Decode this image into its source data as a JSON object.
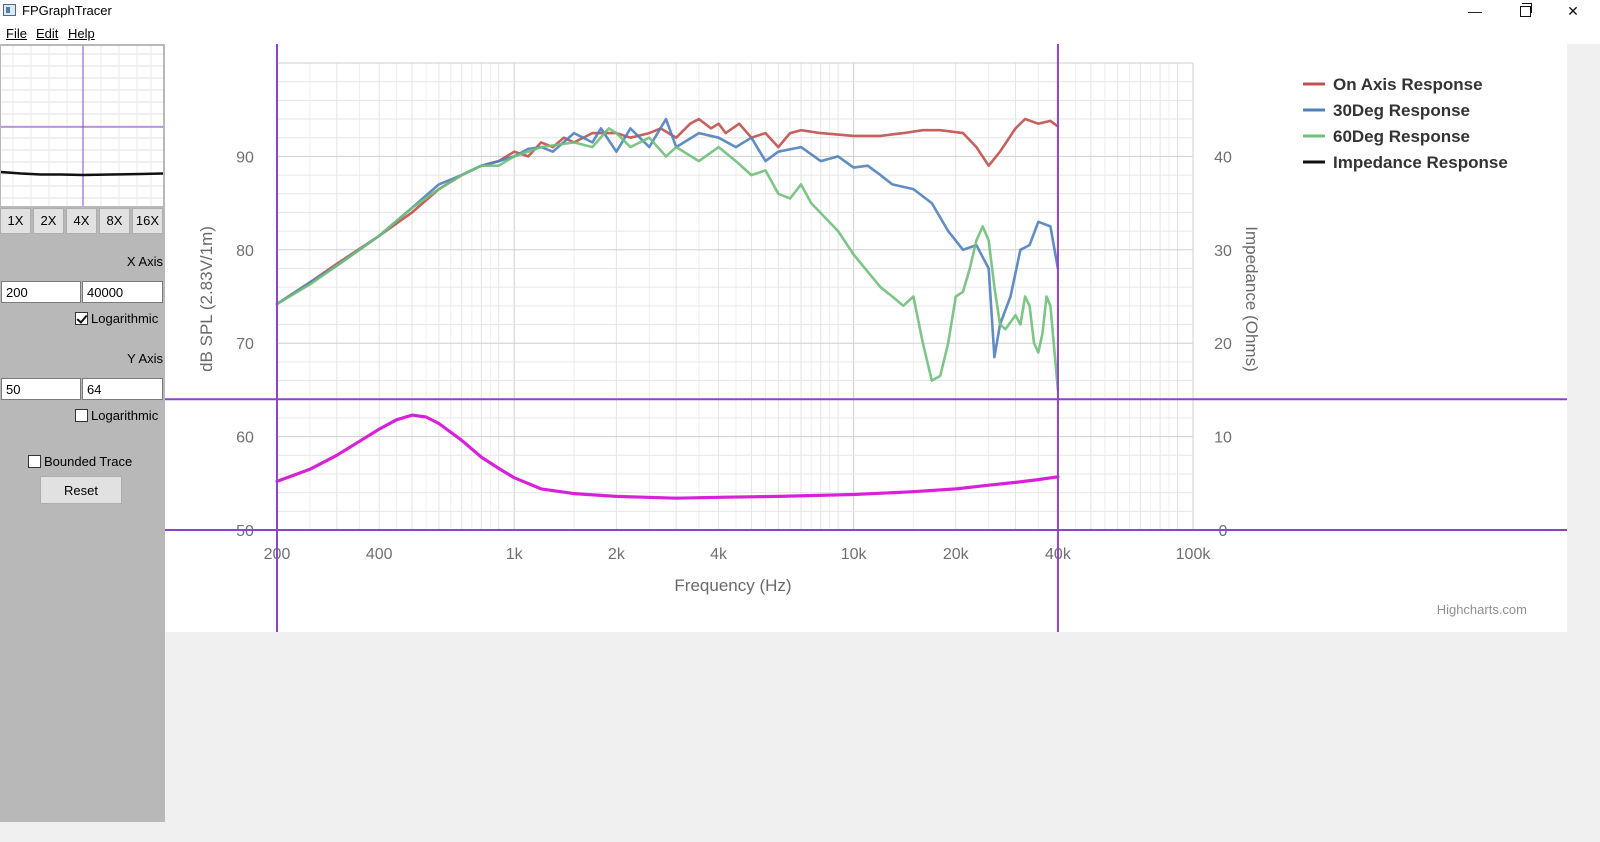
{
  "window": {
    "title": "FPGraphTracer",
    "controls": {
      "minimize": "—",
      "close": "✕"
    }
  },
  "menu": {
    "file": "File",
    "edit": "Edit",
    "help": "Help"
  },
  "sidebar": {
    "zoom_buttons": [
      "1X",
      "2X",
      "4X",
      "8X",
      "16X"
    ],
    "x_axis": {
      "label": "X Axis",
      "min": "200",
      "max": "40000",
      "logarithmic_label": "Logarithmic",
      "logarithmic": true
    },
    "y_axis": {
      "label": "Y Axis",
      "min": "50",
      "max": "64",
      "logarithmic_label": "Logarithmic",
      "logarithmic": false
    },
    "bounded_trace_label": "Bounded Trace",
    "bounded_trace": false,
    "reset_label": "Reset"
  },
  "colors": {
    "on_axis": "#c0504d",
    "deg30": "#4f81bd",
    "deg60": "#6fc07a",
    "impedance": "#111111",
    "trace": "#e020e0",
    "guide": "#8e44c8"
  },
  "chart_data": {
    "type": "line",
    "xlabel": "Frequency (Hz)",
    "ylabel": "dB SPL (2.83V/1m)",
    "y2label": "Impedance (Ohms)",
    "credit": "Highcharts.com",
    "x_scale": "log",
    "xlim": [
      200,
      100000
    ],
    "ylim": [
      50,
      100
    ],
    "y2lim": [
      0,
      50
    ],
    "x_ticks": [
      {
        "v": 200,
        "label": "200"
      },
      {
        "v": 400,
        "label": "400"
      },
      {
        "v": 1000,
        "label": "1k"
      },
      {
        "v": 2000,
        "label": "2k"
      },
      {
        "v": 4000,
        "label": "4k"
      },
      {
        "v": 10000,
        "label": "10k"
      },
      {
        "v": 20000,
        "label": "20k"
      },
      {
        "v": 40000,
        "label": "40k"
      },
      {
        "v": 100000,
        "label": "100k"
      }
    ],
    "y_ticks": [
      {
        "v": 50,
        "label": "50"
      },
      {
        "v": 60,
        "label": "60"
      },
      {
        "v": 70,
        "label": "70"
      },
      {
        "v": 80,
        "label": "80"
      },
      {
        "v": 90,
        "label": "90"
      }
    ],
    "y2_ticks": [
      {
        "v": 0,
        "label": "0"
      },
      {
        "v": 10,
        "label": "10"
      },
      {
        "v": 20,
        "label": "20"
      },
      {
        "v": 30,
        "label": "30"
      },
      {
        "v": 40,
        "label": "40"
      }
    ],
    "legend_position": "top-right",
    "series": [
      {
        "name": "On Axis Response",
        "color_key": "on_axis",
        "points": [
          [
            200,
            74.2
          ],
          [
            250,
            76.5
          ],
          [
            300,
            78.5
          ],
          [
            400,
            81.5
          ],
          [
            500,
            84
          ],
          [
            600,
            86.5
          ],
          [
            700,
            88
          ],
          [
            800,
            89
          ],
          [
            900,
            89.5
          ],
          [
            1000,
            90.5
          ],
          [
            1100,
            90
          ],
          [
            1200,
            91.5
          ],
          [
            1300,
            91
          ],
          [
            1400,
            92
          ],
          [
            1500,
            91.5
          ],
          [
            1700,
            92.5
          ],
          [
            2000,
            92.5
          ],
          [
            2200,
            92
          ],
          [
            2500,
            92.5
          ],
          [
            2700,
            93
          ],
          [
            3000,
            92
          ],
          [
            3300,
            93.5
          ],
          [
            3500,
            94
          ],
          [
            3800,
            93
          ],
          [
            4000,
            93.5
          ],
          [
            4200,
            92.5
          ],
          [
            4600,
            93.5
          ],
          [
            5000,
            92
          ],
          [
            5500,
            92.5
          ],
          [
            6000,
            91
          ],
          [
            6500,
            92.5
          ],
          [
            7000,
            92.8
          ],
          [
            8000,
            92.5
          ],
          [
            10000,
            92.2
          ],
          [
            12000,
            92.2
          ],
          [
            14000,
            92.5
          ],
          [
            16000,
            92.8
          ],
          [
            18000,
            92.8
          ],
          [
            21000,
            92.5
          ],
          [
            23000,
            91
          ],
          [
            25000,
            89
          ],
          [
            27000,
            90.5
          ],
          [
            30000,
            93
          ],
          [
            32000,
            94
          ],
          [
            35000,
            93.5
          ],
          [
            38000,
            93.8
          ],
          [
            40000,
            93.2
          ]
        ]
      },
      {
        "name": "30Deg Response",
        "color_key": "deg30",
        "points": [
          [
            200,
            74.2
          ],
          [
            250,
            76.5
          ],
          [
            300,
            78.3
          ],
          [
            400,
            81.5
          ],
          [
            500,
            84.5
          ],
          [
            600,
            87
          ],
          [
            700,
            88
          ],
          [
            800,
            89
          ],
          [
            900,
            89.5
          ],
          [
            1000,
            90
          ],
          [
            1100,
            90.8
          ],
          [
            1200,
            91
          ],
          [
            1300,
            90.5
          ],
          [
            1500,
            92.5
          ],
          [
            1700,
            91.5
          ],
          [
            1800,
            93
          ],
          [
            2000,
            90.5
          ],
          [
            2200,
            93
          ],
          [
            2500,
            91
          ],
          [
            2800,
            94
          ],
          [
            3000,
            91
          ],
          [
            3500,
            92.5
          ],
          [
            4000,
            92
          ],
          [
            4500,
            91
          ],
          [
            5000,
            92
          ],
          [
            5500,
            89.5
          ],
          [
            6000,
            90.5
          ],
          [
            7000,
            91
          ],
          [
            8000,
            89.5
          ],
          [
            9000,
            90
          ],
          [
            10000,
            88.8
          ],
          [
            11000,
            89
          ],
          [
            12000,
            88
          ],
          [
            13000,
            87
          ],
          [
            15000,
            86.5
          ],
          [
            17000,
            85
          ],
          [
            19000,
            82
          ],
          [
            21000,
            80
          ],
          [
            23000,
            80.5
          ],
          [
            25000,
            78
          ],
          [
            26000,
            68.5
          ],
          [
            27000,
            72
          ],
          [
            29000,
            75
          ],
          [
            31000,
            80
          ],
          [
            33000,
            80.5
          ],
          [
            35000,
            83
          ],
          [
            38000,
            82.5
          ],
          [
            40000,
            78
          ]
        ]
      },
      {
        "name": "60Deg Response",
        "color_key": "deg60",
        "points": [
          [
            200,
            74.2
          ],
          [
            250,
            76.3
          ],
          [
            300,
            78.3
          ],
          [
            400,
            81.5
          ],
          [
            500,
            84.5
          ],
          [
            600,
            86.5
          ],
          [
            700,
            88
          ],
          [
            800,
            89
          ],
          [
            900,
            89
          ],
          [
            1000,
            90
          ],
          [
            1200,
            91
          ],
          [
            1500,
            91.5
          ],
          [
            1700,
            91
          ],
          [
            1900,
            93
          ],
          [
            2000,
            92.5
          ],
          [
            2200,
            91
          ],
          [
            2500,
            92
          ],
          [
            2800,
            90
          ],
          [
            3000,
            91
          ],
          [
            3500,
            89.5
          ],
          [
            4000,
            91
          ],
          [
            4500,
            89.5
          ],
          [
            5000,
            88
          ],
          [
            5500,
            88.5
          ],
          [
            6000,
            86
          ],
          [
            6500,
            85.5
          ],
          [
            7000,
            87
          ],
          [
            7500,
            85
          ],
          [
            9000,
            82
          ],
          [
            10000,
            79.5
          ],
          [
            12000,
            76
          ],
          [
            13000,
            75
          ],
          [
            14000,
            74
          ],
          [
            15000,
            75
          ],
          [
            16000,
            70
          ],
          [
            17000,
            66
          ],
          [
            18000,
            66.5
          ],
          [
            19000,
            70
          ],
          [
            20000,
            75
          ],
          [
            21000,
            75.5
          ],
          [
            22000,
            78
          ],
          [
            23000,
            81
          ],
          [
            24000,
            82.5
          ],
          [
            25000,
            81
          ],
          [
            26000,
            76
          ],
          [
            27000,
            72
          ],
          [
            28000,
            71.5
          ],
          [
            30000,
            73
          ],
          [
            31000,
            72
          ],
          [
            32000,
            75
          ],
          [
            33000,
            74
          ],
          [
            34000,
            70
          ],
          [
            35000,
            69
          ],
          [
            36000,
            71
          ],
          [
            37000,
            75
          ],
          [
            38000,
            74
          ],
          [
            40000,
            65
          ]
        ]
      },
      {
        "name": "Impedance Response",
        "color_key": "impedance",
        "axis": "y2",
        "points": [
          [
            200,
            5.2
          ],
          [
            250,
            6.5
          ],
          [
            300,
            8
          ],
          [
            350,
            9.5
          ],
          [
            400,
            10.8
          ],
          [
            450,
            11.8
          ],
          [
            500,
            12.3
          ],
          [
            550,
            12.1
          ],
          [
            600,
            11.4
          ],
          [
            700,
            9.6
          ],
          [
            800,
            7.8
          ],
          [
            900,
            6.6
          ],
          [
            1000,
            5.6
          ],
          [
            1200,
            4.4
          ],
          [
            1500,
            3.9
          ],
          [
            2000,
            3.6
          ],
          [
            3000,
            3.4
          ],
          [
            4000,
            3.5
          ],
          [
            6000,
            3.6
          ],
          [
            10000,
            3.8
          ],
          [
            15000,
            4.1
          ],
          [
            20000,
            4.4
          ],
          [
            25000,
            4.8
          ],
          [
            30000,
            5.1
          ],
          [
            35000,
            5.4
          ],
          [
            40000,
            5.7
          ]
        ]
      }
    ],
    "trace": {
      "color_key": "trace",
      "points": [
        [
          200,
          5.2
        ],
        [
          250,
          6.5
        ],
        [
          300,
          8
        ],
        [
          350,
          9.5
        ],
        [
          400,
          10.8
        ],
        [
          450,
          11.8
        ],
        [
          500,
          12.3
        ],
        [
          550,
          12.1
        ],
        [
          600,
          11.4
        ],
        [
          700,
          9.6
        ],
        [
          800,
          7.8
        ],
        [
          900,
          6.6
        ],
        [
          1000,
          5.6
        ],
        [
          1200,
          4.4
        ],
        [
          1500,
          3.9
        ],
        [
          2000,
          3.6
        ],
        [
          3000,
          3.4
        ],
        [
          4000,
          3.5
        ],
        [
          6000,
          3.6
        ],
        [
          10000,
          3.8
        ],
        [
          15000,
          4.1
        ],
        [
          20000,
          4.4
        ],
        [
          25000,
          4.8
        ],
        [
          30000,
          5.1
        ],
        [
          35000,
          5.4
        ],
        [
          40000,
          5.7
        ]
      ]
    },
    "calibration": {
      "x": [
        200,
        40000
      ],
      "y": [
        50,
        64
      ]
    }
  }
}
